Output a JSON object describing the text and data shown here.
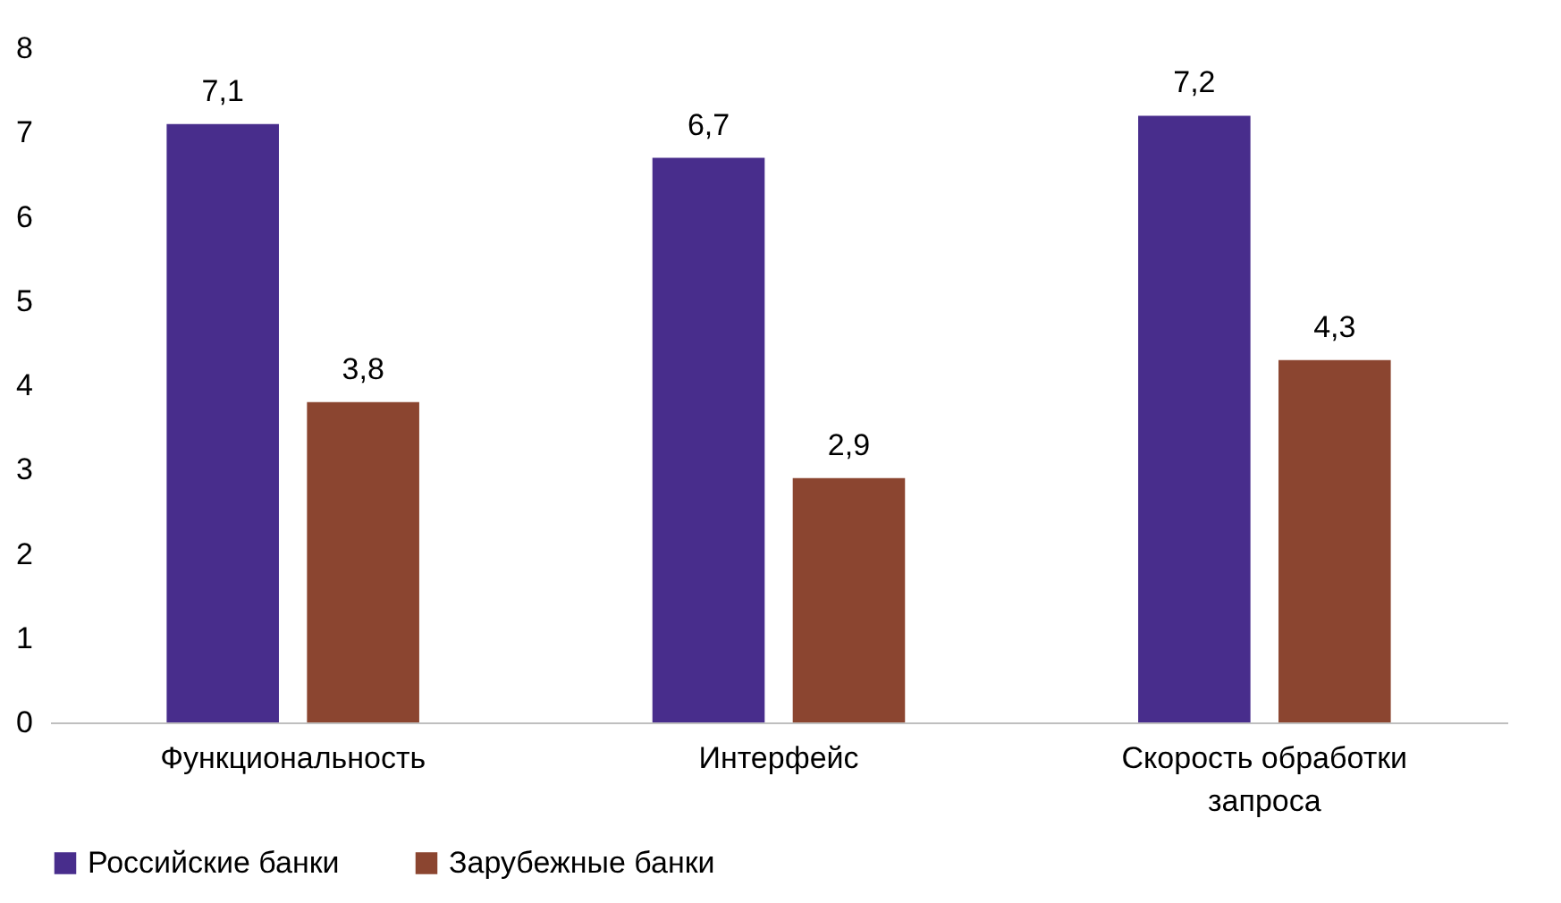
{
  "chart_data": {
    "type": "bar",
    "categories": [
      "Функциональность",
      "Интерфейс",
      "Скорость обработки запроса"
    ],
    "series": [
      {
        "name": "Российские банки",
        "color": "#482d8c",
        "values": [
          7.1,
          6.7,
          7.2
        ],
        "value_labels": [
          "7,1",
          "6,7",
          "7,2"
        ]
      },
      {
        "name": "Зарубежные банки",
        "color": "#8b4530",
        "values": [
          3.8,
          2.9,
          4.3
        ],
        "value_labels": [
          "3,8",
          "2,9",
          "4,3"
        ]
      }
    ],
    "ylim": [
      0,
      8
    ],
    "yticks": [
      0,
      1,
      2,
      3,
      4,
      5,
      6,
      7,
      8
    ],
    "legend": "bottom"
  }
}
